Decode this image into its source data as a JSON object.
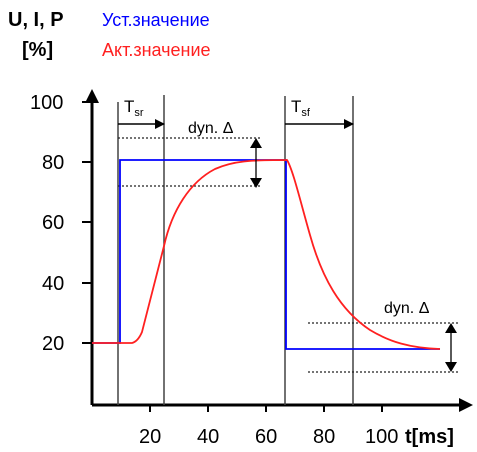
{
  "labels": {
    "y_axis_title_line1": "U, I, P",
    "y_axis_title_line2": "[%]",
    "legend_set": "Уст.значение",
    "legend_actual": "Акт.значение",
    "x_axis_title": "t[ms]",
    "tsr_main": "T",
    "tsr_sub": "sr",
    "tsf_main": "T",
    "tsf_sub": "sf",
    "dyn_delta_top": "dyn. Δ",
    "dyn_delta_bottom": "dyn. Δ"
  },
  "y_ticks": [
    "100",
    "80",
    "60",
    "40",
    "20"
  ],
  "x_ticks": [
    "20",
    "40",
    "60",
    "80",
    "100"
  ],
  "colors": {
    "set_value": "#0000ff",
    "actual_value": "#ff2020",
    "axes": "#000000",
    "marker_lines": "#444444"
  }
}
